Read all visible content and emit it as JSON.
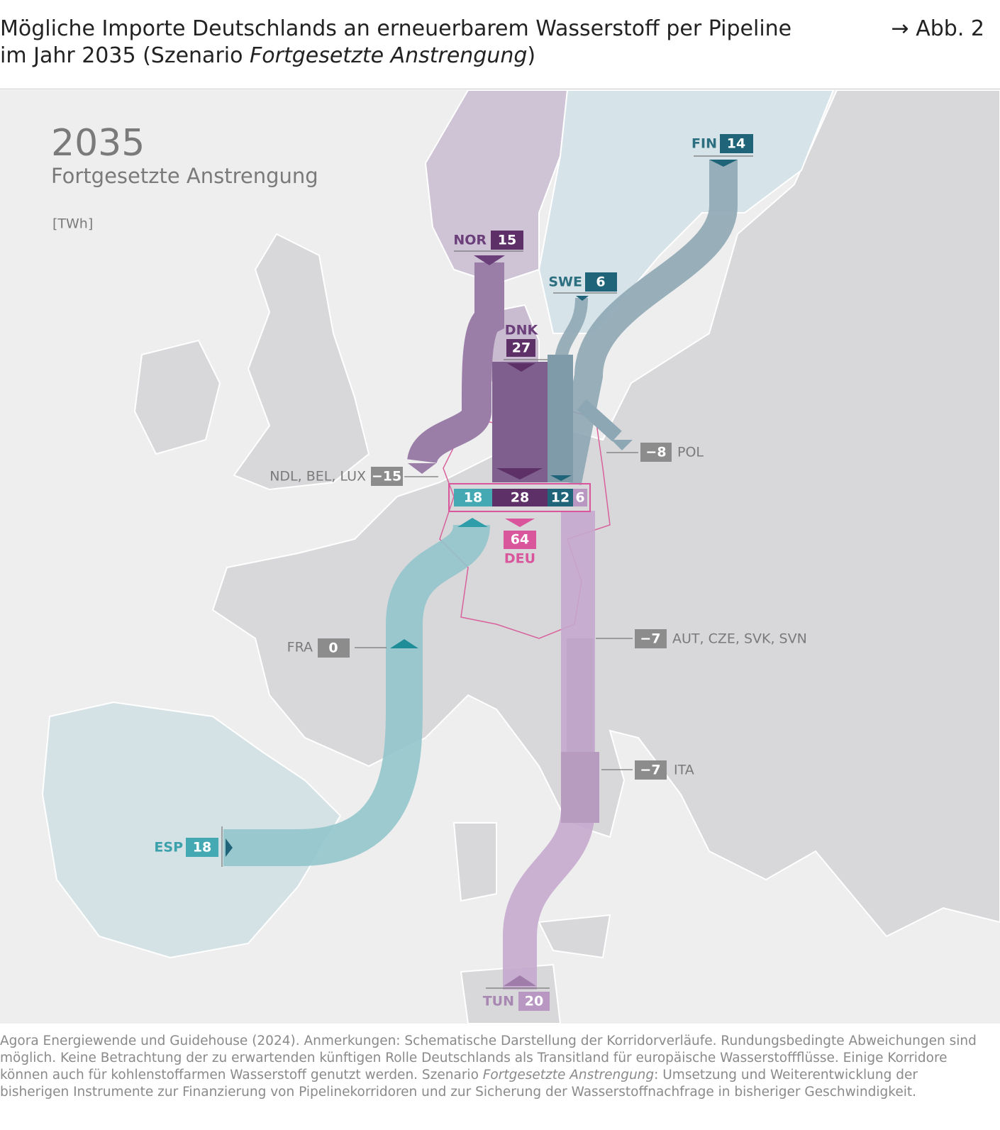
{
  "header": {
    "title_line1": "Mögliche Importe Deutschlands an erneuerbarem Wasserstoff per Pipeline",
    "title_line2_start": "im Jahr 2035 (Szenario ",
    "title_line2_italic": "Fortgesetzte Anstrengung",
    "title_line2_end": ")",
    "figure_ref": "→ Abb. 2"
  },
  "map": {
    "year": "2035",
    "scenario": "Fortgesetzte Anstrengung",
    "unit": "[TWh]",
    "flows": [
      {
        "label": "NOR",
        "value": "15"
      },
      {
        "label": "SWE",
        "value": "6"
      },
      {
        "label": "FIN",
        "value": "14"
      },
      {
        "label": "DNK",
        "value": "27"
      },
      {
        "label": "POL",
        "value": "−8"
      },
      {
        "label": "NDL, BEL, LUX",
        "value": "−15"
      },
      {
        "label": "FRA",
        "value": "0"
      },
      {
        "label": "AUT, CZE, SVK, SVN",
        "value": "−7"
      },
      {
        "label": "ITA",
        "value": "−7"
      },
      {
        "label": "ESP",
        "value": "18"
      },
      {
        "label": "TUN",
        "value": "20"
      }
    ],
    "germany": {
      "segments": [
        "18",
        "28",
        "12",
        "6"
      ],
      "total": "64",
      "label": "DEU"
    }
  },
  "footer": {
    "text_start": "Agora Energiewende und Guidehouse (2024). Anmerkungen: Schematische Darstellung der Korridorverläufe. Rundungsbedingte Abweichungen sind möglich. Keine Betrachtung der zu erwartenden künftigen Rolle Deutschlands als Transitland für europäische Wasserstoffflüsse. Einige Korridore können auch für kohlenstoffarmen Wasserstoff genutzt werden. Szenario ",
    "text_italic": "Fortgesetzte Anstrengung",
    "text_end": ": Umsetzung und Weiterentwicklung der bisherigen Instrumente zur Finanzierung von Pipelinekorridoren und zur Sicherung der Wasserstoffnachfrage in bisheriger Geschwindigkeit."
  }
}
